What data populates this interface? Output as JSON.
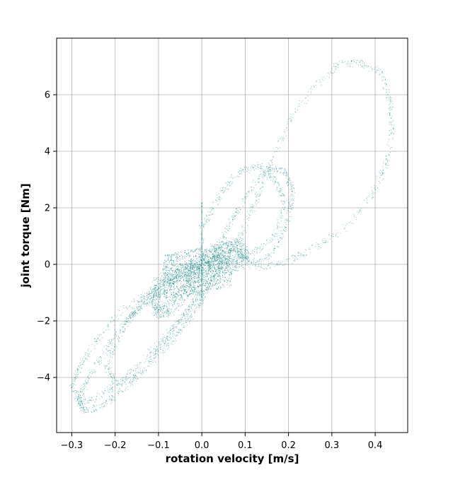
{
  "chart_data": {
    "type": "scatter",
    "title": "",
    "xlabel": "rotation velocity [m/s]",
    "ylabel": "joint torque [Nm]",
    "xlim": [
      -0.335,
      0.475
    ],
    "ylim": [
      -5.95,
      8.0
    ],
    "xticks": [
      -0.3,
      -0.2,
      -0.1,
      0.0,
      0.1,
      0.2,
      0.3,
      0.4
    ],
    "xtick_labels": [
      "−0.3",
      "−0.2",
      "−0.1",
      "0.0",
      "0.1",
      "0.2",
      "0.3",
      "0.4"
    ],
    "yticks": [
      -4,
      -2,
      0,
      2,
      4,
      6
    ],
    "ytick_labels": [
      "−4",
      "−2",
      "0",
      "2",
      "4",
      "6"
    ],
    "grid": true,
    "marker_color": "#008080",
    "series": [
      {
        "label": "",
        "trajectory": [
          [
            0.0,
            -1.3
          ],
          [
            0.02,
            -0.6
          ],
          [
            0.05,
            0.0
          ],
          [
            0.09,
            1.0
          ],
          [
            0.12,
            2.1
          ],
          [
            0.16,
            3.6
          ],
          [
            0.2,
            5.0
          ],
          [
            0.26,
            6.3
          ],
          [
            0.32,
            7.1
          ],
          [
            0.37,
            7.1
          ],
          [
            0.41,
            6.8
          ],
          [
            0.435,
            5.8
          ],
          [
            0.44,
            4.8
          ],
          [
            0.425,
            3.5
          ],
          [
            0.39,
            2.4
          ],
          [
            0.33,
            1.3
          ],
          [
            0.26,
            0.6
          ],
          [
            0.2,
            0.1
          ],
          [
            0.14,
            -0.1
          ],
          [
            0.07,
            0.0
          ],
          [
            0.0,
            0.0
          ],
          [
            -0.04,
            -0.3
          ],
          [
            -0.08,
            -0.9
          ],
          [
            -0.11,
            -1.2
          ],
          [
            -0.14,
            -1.5
          ],
          [
            -0.18,
            -2.1
          ],
          [
            -0.22,
            -3.0
          ],
          [
            -0.26,
            -4.0
          ],
          [
            -0.285,
            -4.8
          ],
          [
            -0.27,
            -5.2
          ],
          [
            -0.23,
            -5.0
          ],
          [
            -0.18,
            -4.4
          ],
          [
            -0.12,
            -3.5
          ],
          [
            -0.07,
            -2.7
          ],
          [
            -0.03,
            -2.0
          ],
          [
            0.0,
            -1.3
          ]
        ],
        "trajectory2": [
          [
            0.0,
            -0.8
          ],
          [
            0.03,
            0.3
          ],
          [
            0.06,
            1.3
          ],
          [
            0.1,
            2.4
          ],
          [
            0.15,
            3.4
          ],
          [
            0.19,
            3.3
          ],
          [
            0.21,
            2.6
          ],
          [
            0.2,
            1.6
          ],
          [
            0.17,
            0.5
          ],
          [
            0.13,
            0.0
          ],
          [
            0.08,
            0.4
          ],
          [
            0.03,
            0.2
          ],
          [
            -0.02,
            -0.4
          ],
          [
            -0.07,
            -0.6
          ],
          [
            -0.12,
            -1.0
          ],
          [
            -0.18,
            -1.6
          ],
          [
            -0.24,
            -2.6
          ],
          [
            -0.28,
            -3.6
          ],
          [
            -0.3,
            -4.3
          ],
          [
            -0.28,
            -4.9
          ],
          [
            -0.24,
            -4.7
          ],
          [
            -0.19,
            -4.2
          ],
          [
            -0.13,
            -3.3
          ],
          [
            -0.08,
            -2.5
          ],
          [
            -0.03,
            -1.6
          ],
          [
            0.0,
            -0.8
          ]
        ],
        "trajectory3": [
          [
            0.0,
            1.3
          ],
          [
            0.04,
            2.4
          ],
          [
            0.08,
            3.2
          ],
          [
            0.13,
            3.5
          ],
          [
            0.17,
            3.0
          ],
          [
            0.19,
            2.2
          ],
          [
            0.17,
            1.0
          ],
          [
            0.12,
            0.4
          ],
          [
            0.06,
            0.2
          ],
          [
            0.0,
            0.1
          ],
          [
            -0.05,
            -0.3
          ],
          [
            -0.1,
            -0.8
          ],
          [
            -0.14,
            -1.4
          ],
          [
            -0.17,
            -2.0
          ],
          [
            -0.2,
            -2.8
          ],
          [
            -0.22,
            -3.6
          ],
          [
            -0.2,
            -4.2
          ],
          [
            -0.15,
            -4.0
          ],
          [
            -0.1,
            -3.0
          ],
          [
            -0.05,
            -2.0
          ],
          [
            0.0,
            -1.0
          ],
          [
            0.0,
            1.3
          ]
        ],
        "trajectory4": [
          [
            -0.1,
            -1.7
          ],
          [
            -0.11,
            -1.2
          ],
          [
            -0.1,
            -0.6
          ],
          [
            -0.06,
            -0.3
          ],
          [
            -0.02,
            -0.1
          ],
          [
            0.02,
            0.3
          ],
          [
            0.05,
            0.6
          ],
          [
            0.09,
            0.7
          ],
          [
            0.1,
            0.2
          ],
          [
            0.07,
            -0.1
          ],
          [
            0.03,
            0.0
          ],
          [
            -0.01,
            -0.5
          ],
          [
            -0.04,
            -1.0
          ],
          [
            -0.07,
            -1.5
          ],
          [
            -0.1,
            -1.7
          ]
        ]
      }
    ]
  }
}
